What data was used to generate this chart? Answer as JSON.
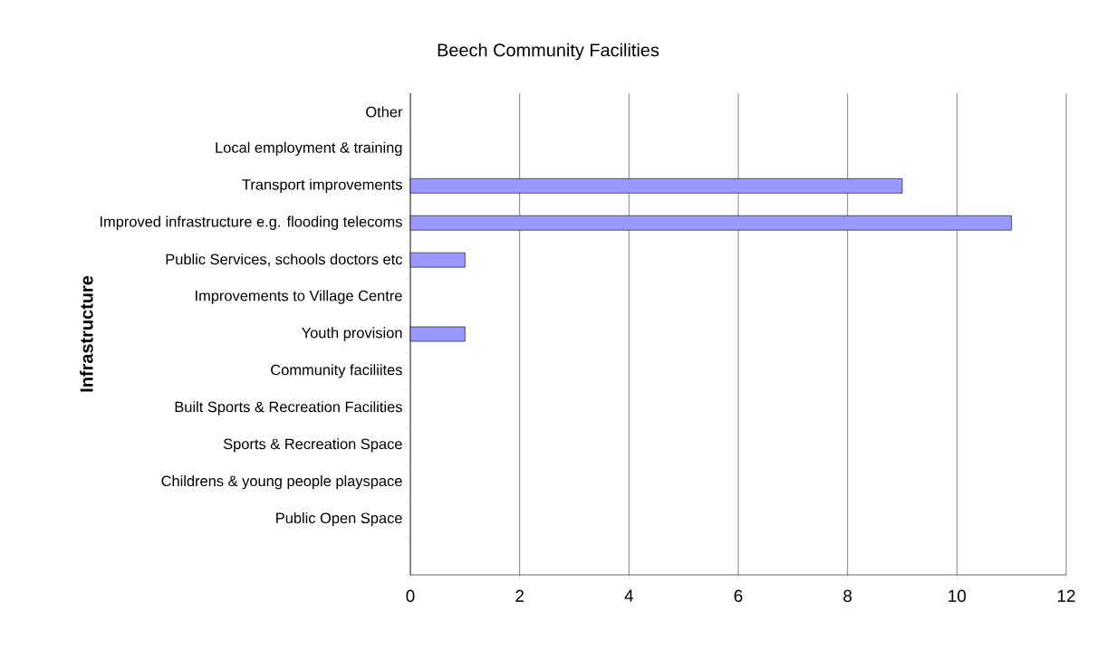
{
  "chart_data": {
    "type": "bar",
    "orientation": "horizontal",
    "title": "Beech Community Facilities",
    "ylabel": "Infrastructure",
    "categories": [
      "Other",
      "Local employment & training",
      "Transport improvements",
      "Improved infrastructure e.g. flooding telecoms",
      "Public Services, schools doctors etc",
      "Improvements to Village Centre",
      "Youth provision",
      "Community faciliites",
      "Built Sports & Recreation Facilities",
      "Sports & Recreation Space",
      "Childrens & young people playspace",
      "Public Open Space",
      null
    ],
    "values": [
      0,
      0,
      9,
      11,
      1,
      0,
      1,
      0,
      0,
      0,
      0,
      0,
      null
    ],
    "color": "#9999ff",
    "xlim": [
      0,
      12
    ],
    "xticks": [
      0,
      2,
      4,
      6,
      8,
      10,
      12
    ],
    "grid": "x"
  }
}
